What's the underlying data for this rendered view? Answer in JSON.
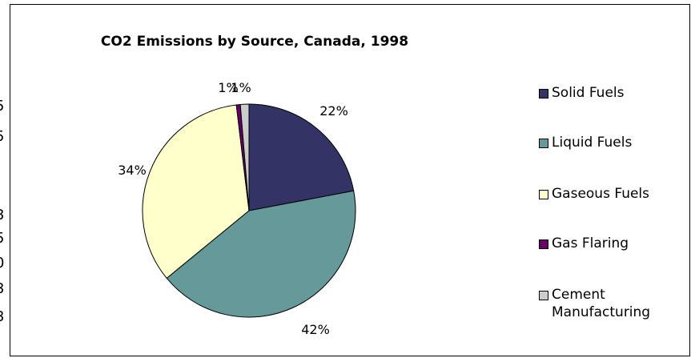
{
  "chart_data": {
    "type": "pie",
    "title": "CO2 Emissions by Source, Canada, 1998",
    "slices": [
      {
        "label": "Solid Fuels",
        "value": 22,
        "display": "22%",
        "color": "#333366"
      },
      {
        "label": "Liquid Fuels",
        "value": 42,
        "display": "42%",
        "color": "#669999"
      },
      {
        "label": "Gaseous Fuels",
        "value": 34,
        "display": "34%",
        "color": "#ffffcc"
      },
      {
        "label": "Gas Flaring",
        "value": 0.6,
        "display": "1%",
        "color": "#660066"
      },
      {
        "label": "Cement Manufacturing",
        "value": 1.3,
        "display": "1%",
        "color": "#cccccc"
      }
    ],
    "legend_position": "right"
  },
  "edge_fragments": [
    "5",
    "5",
    "3",
    "5",
    "0",
    "3",
    "3"
  ]
}
